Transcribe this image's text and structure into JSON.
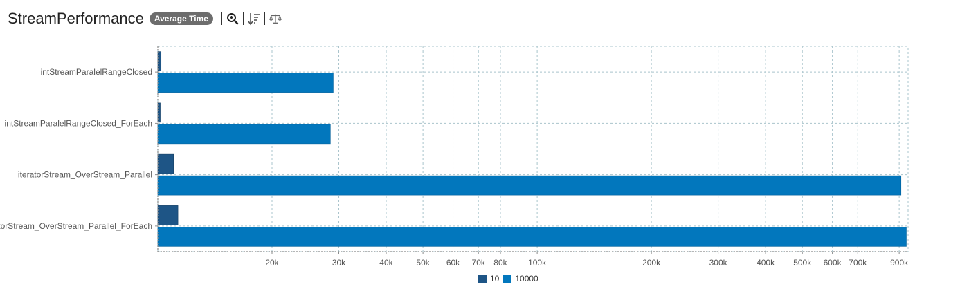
{
  "header": {
    "title": "StreamPerformance",
    "badge": "Average Time",
    "tools": [
      "zoom-in-icon",
      "sort-icon",
      "compare-scale-icon"
    ]
  },
  "colors": {
    "series_10": "#1e5586",
    "series_10000": "#0277bd",
    "grid": "#a9c4cc",
    "axis": "#8a8a8a"
  },
  "chart_data": {
    "type": "bar",
    "orientation": "horizontal",
    "x_scale": "log",
    "xlim": [
      10000,
      950000
    ],
    "grid": true,
    "legend_position": "bottom",
    "categories": [
      "intStreamParalelRangeClosed",
      "intStreamParalelRangeClosed_ForEach",
      "iteratorStream_OverStream_Parallel",
      "iteratorStream_OverStream_Parallel_ForEach"
    ],
    "series": [
      {
        "name": "10",
        "values": [
          10200,
          10150,
          11000,
          11300
        ]
      },
      {
        "name": "10000",
        "values": [
          29000,
          28500,
          910000,
          940000
        ]
      }
    ],
    "x_ticks": [
      {
        "value": 20000,
        "label": "20k"
      },
      {
        "value": 30000,
        "label": "30k"
      },
      {
        "value": 40000,
        "label": "40k"
      },
      {
        "value": 50000,
        "label": "50k"
      },
      {
        "value": 60000,
        "label": "60k"
      },
      {
        "value": 70000,
        "label": "70k"
      },
      {
        "value": 80000,
        "label": "80k"
      },
      {
        "value": 100000,
        "label": "100k"
      },
      {
        "value": 200000,
        "label": "200k"
      },
      {
        "value": 300000,
        "label": "300k"
      },
      {
        "value": 400000,
        "label": "400k"
      },
      {
        "value": 500000,
        "label": "500k"
      },
      {
        "value": 600000,
        "label": "600k"
      },
      {
        "value": 700000,
        "label": "700k"
      },
      {
        "value": 900000,
        "label": "900k"
      }
    ]
  }
}
